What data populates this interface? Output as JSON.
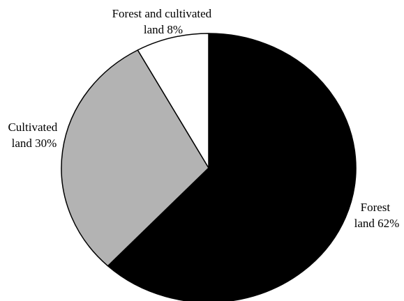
{
  "chart_data": {
    "type": "pie",
    "title": "",
    "start_angle_deg": 0,
    "direction": "clockwise",
    "slices": [
      {
        "name": "Forest land",
        "value": 62,
        "label_lines": [
          "Forest",
          "land 62%"
        ],
        "color": "#000000"
      },
      {
        "name": "Cultivated land",
        "value": 30,
        "label_lines": [
          "Cultivated",
          "land 30%"
        ],
        "color": "#b3b3b3"
      },
      {
        "name": "Forest and cultivated land",
        "value": 8,
        "label_lines": [
          "Forest and cultivated",
          "land 8%"
        ],
        "color": "#ffffff"
      }
    ]
  }
}
